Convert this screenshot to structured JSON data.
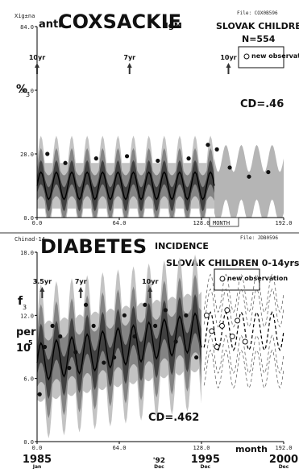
{
  "chart_data": [
    {
      "type": "line",
      "corner_text": "Xig±na",
      "title_prefix": "anti",
      "title": "COXSACKIE",
      "title_suffix": "IgM",
      "file": "File: COX0B596",
      "population": "SLOVAK CHILDREN",
      "n": "N=554",
      "legend_label": "new observation",
      "legend_icon": "circle-marker",
      "ylabel": "%",
      "ylabel_sub": "3",
      "cd": "CD=.46",
      "yticks": [
        "84.0",
        "56.0",
        "28.0",
        "0.0"
      ],
      "ylim": [
        0,
        84
      ],
      "xticks": [
        "0.0",
        "64.0",
        "128.0",
        "192.0"
      ],
      "xlim": [
        0,
        192
      ],
      "month_label": "MONTH",
      "period_labels": [
        {
          "text": "10yr",
          "x": 0
        },
        {
          "text": "7yr",
          "x": 72
        },
        {
          "text": "10yr",
          "x": 149
        }
      ],
      "fit_end_month": 138,
      "series": [
        {
          "role": "mean",
          "amplitude": 6,
          "period_months": 12,
          "baseline": 14,
          "extends_to": 192
        },
        {
          "role": "band",
          "half_width": 10
        }
      ],
      "observations": [
        {
          "x": 8,
          "y": 28
        },
        {
          "x": 22,
          "y": 24
        },
        {
          "x": 46,
          "y": 26
        },
        {
          "x": 70,
          "y": 27
        },
        {
          "x": 94,
          "y": 25
        },
        {
          "x": 118,
          "y": 26
        },
        {
          "x": 133,
          "y": 32
        },
        {
          "x": 140,
          "y": 30
        },
        {
          "x": 150,
          "y": 22
        },
        {
          "x": 165,
          "y": 18
        },
        {
          "x": 180,
          "y": 20
        }
      ]
    },
    {
      "type": "line",
      "corner_text": "Chinad-14",
      "title": "DIABETES",
      "title_suffix": "INCIDENCE",
      "file": "File: JDB0596",
      "population": "SLOVAK CHILDREN 0-14yrs",
      "legend_label": "new observation",
      "legend_icon": "circle-marker",
      "ylabel": "f",
      "ylabel_sub": "3",
      "ylabel_per": "per",
      "ylabel_unit": "10",
      "ylabel_exp": "5",
      "cd": "CD=.462",
      "yticks": [
        "18.0",
        "12.0",
        "6.0",
        "0.0"
      ],
      "ylim": [
        0,
        18
      ],
      "xticks": [
        "0.0",
        "64.0",
        "128.0",
        "192.0"
      ],
      "xlim": [
        0,
        192
      ],
      "month_label": "month",
      "year_labels": [
        {
          "year": "1985",
          "sub": "Jan",
          "x": 0
        },
        {
          "year": "'92",
          "sub": "Dec",
          "x": 95
        },
        {
          "year": "1995",
          "sub": "Dec",
          "x": 131
        },
        {
          "year": "2000",
          "sub": "Dec",
          "x": 192
        }
      ],
      "period_labels": [
        {
          "text": "3.5yr",
          "x": 4
        },
        {
          "text": "7yr",
          "x": 34
        },
        {
          "text": "10yr",
          "x": 88
        }
      ],
      "fit_end_month": 128,
      "series": [
        {
          "role": "mean",
          "amplitude": 1.8,
          "period_months": 12,
          "baseline_start": 7.5,
          "baseline_end": 10.5
        },
        {
          "role": "forecast-dashed",
          "amplitude": 1.8,
          "period_months": 12,
          "baseline": 10.5,
          "from": 130,
          "to": 192
        },
        {
          "role": "band",
          "half_width": 3.5
        }
      ],
      "observations": [
        {
          "x": 2,
          "y": 4.5
        },
        {
          "x": 6,
          "y": 9
        },
        {
          "x": 12,
          "y": 11
        },
        {
          "x": 18,
          "y": 10
        },
        {
          "x": 25,
          "y": 7
        },
        {
          "x": 30,
          "y": 8.5
        },
        {
          "x": 38,
          "y": 13
        },
        {
          "x": 44,
          "y": 11
        },
        {
          "x": 52,
          "y": 7.5
        },
        {
          "x": 60,
          "y": 8
        },
        {
          "x": 68,
          "y": 12
        },
        {
          "x": 76,
          "y": 10
        },
        {
          "x": 84,
          "y": 13
        },
        {
          "x": 92,
          "y": 11
        },
        {
          "x": 100,
          "y": 12.5
        },
        {
          "x": 108,
          "y": 9.5
        },
        {
          "x": 116,
          "y": 12
        },
        {
          "x": 124,
          "y": 8
        }
      ],
      "new_observations": [
        {
          "x": 132,
          "y": 12
        },
        {
          "x": 136,
          "y": 10.5
        },
        {
          "x": 140,
          "y": 9
        },
        {
          "x": 144,
          "y": 11
        },
        {
          "x": 148,
          "y": 12.5
        },
        {
          "x": 152,
          "y": 10
        },
        {
          "x": 156,
          "y": 11.5
        },
        {
          "x": 162,
          "y": 9.5
        }
      ]
    }
  ]
}
